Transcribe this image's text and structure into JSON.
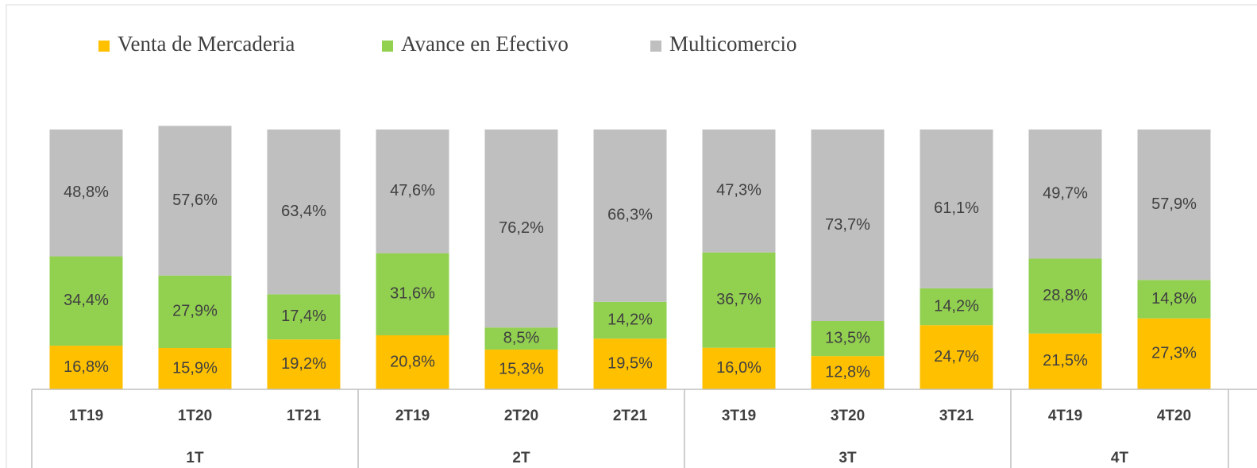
{
  "chart_data": {
    "type": "stacked_bar",
    "categories": [
      "1T19",
      "1T20",
      "1T21",
      "2T19",
      "2T20",
      "2T21",
      "3T19",
      "3T20",
      "3T21",
      "4T19",
      "4T20"
    ],
    "groups": [
      {
        "name": "1T",
        "size": 3
      },
      {
        "name": "2T",
        "size": 3
      },
      {
        "name": "3T",
        "size": 3
      },
      {
        "name": "4T",
        "size": 2
      }
    ],
    "ylim": [
      0,
      100
    ],
    "series": [
      {
        "name": "Venta de Mercaderia",
        "color": "#ffc000",
        "values": [
          16.8,
          15.9,
          19.2,
          20.8,
          15.3,
          19.5,
          16.0,
          12.8,
          24.7,
          21.5,
          27.3
        ],
        "value_labels": [
          "16,8%",
          "15,9%",
          "19,2%",
          "20,8%",
          "15,3%",
          "19,5%",
          "16,0%",
          "12,8%",
          "24,7%",
          "21,5%",
          "27,3%"
        ]
      },
      {
        "name": "Avance en Efectivo",
        "color": "#92d050",
        "values": [
          34.4,
          27.9,
          17.4,
          31.6,
          8.5,
          14.2,
          36.7,
          13.5,
          14.2,
          28.8,
          14.8
        ],
        "value_labels": [
          "34,4%",
          "27,9%",
          "17,4%",
          "31,6%",
          "8,5%",
          "14,2%",
          "36,7%",
          "13,5%",
          "14,2%",
          "28,8%",
          "14,8%"
        ]
      },
      {
        "name": "Multicomercio",
        "color": "#bfbfbf",
        "values": [
          48.8,
          57.6,
          63.4,
          47.6,
          76.2,
          66.3,
          47.3,
          73.7,
          61.1,
          49.7,
          57.9
        ],
        "value_labels": [
          "48,8%",
          "57,6%",
          "63,4%",
          "47,6%",
          "76,2%",
          "66,3%",
          "47,3%",
          "73,7%",
          "61,1%",
          "49,7%",
          "57,9%"
        ]
      }
    ]
  }
}
